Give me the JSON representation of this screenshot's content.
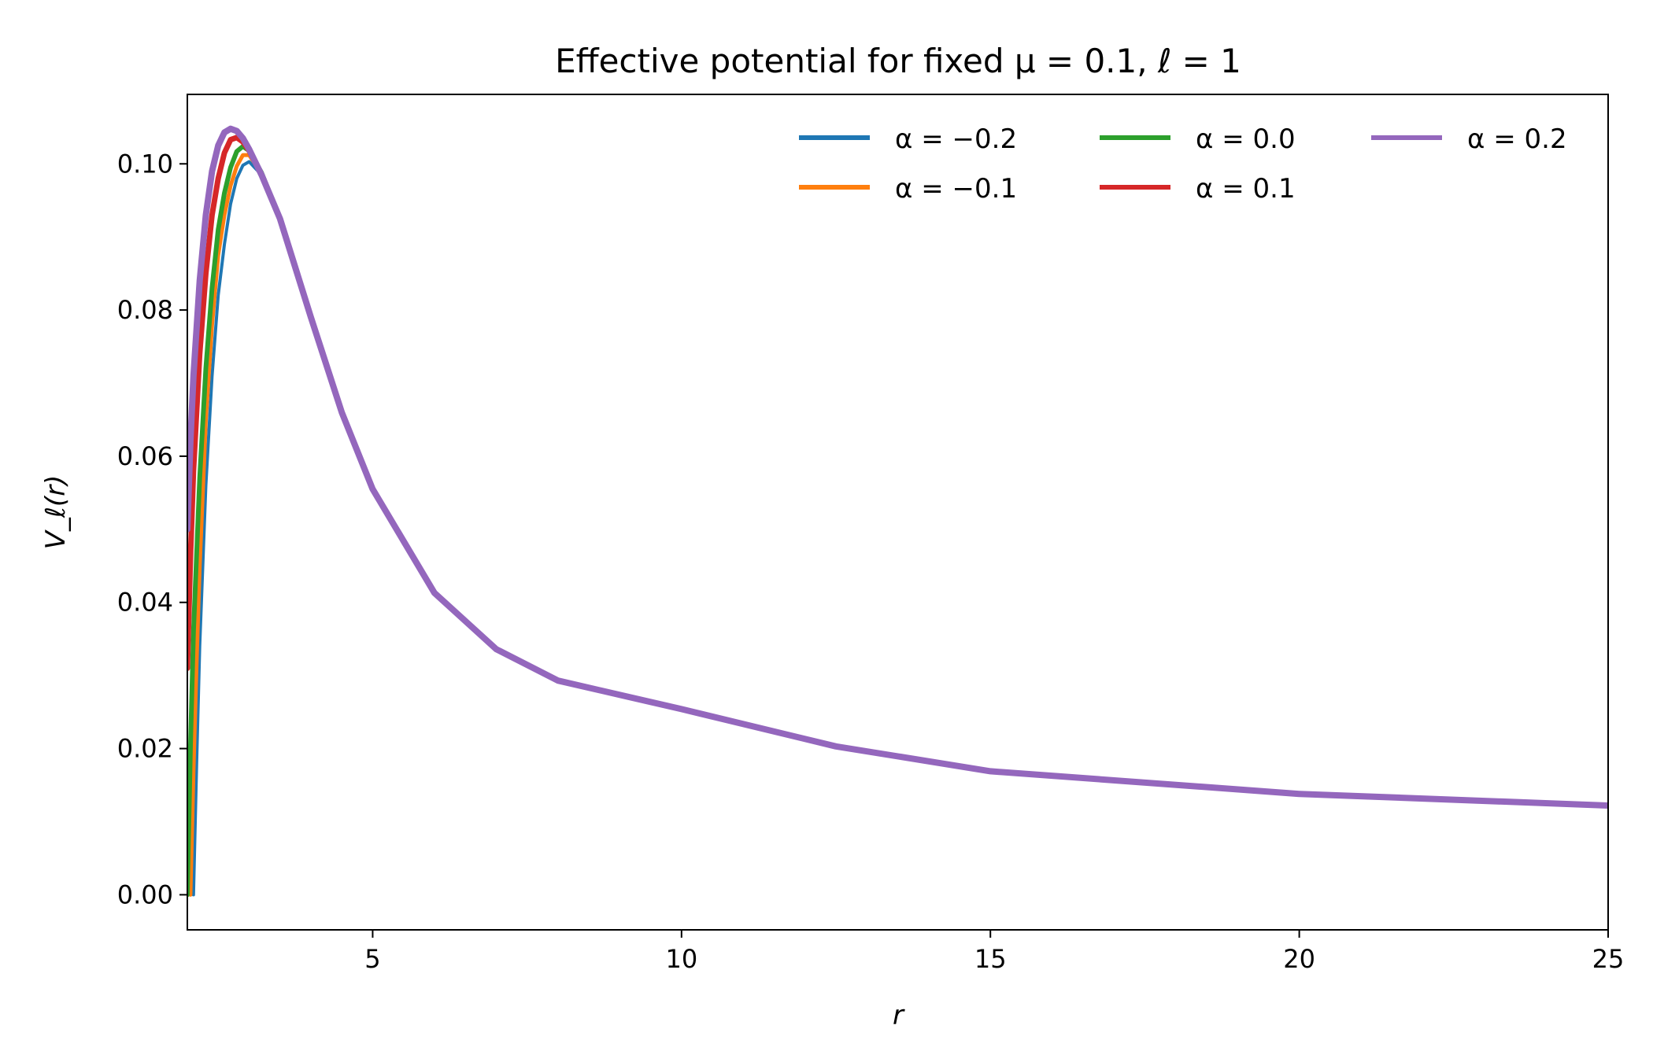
{
  "chart_data": {
    "type": "line",
    "title": "Effective potential for fixed μ = 0.1, ℓ = 1",
    "xlabel": "r",
    "ylabel": "V_ℓ(r)",
    "xlim": [
      2.0,
      25
    ],
    "ylim": [
      -0.0048,
      0.1095
    ],
    "x_ticks": [
      5,
      10,
      15,
      20,
      25
    ],
    "x_tick_labels": [
      "5",
      "10",
      "15",
      "20",
      "25"
    ],
    "y_ticks": [
      0.0,
      0.02,
      0.04,
      0.06,
      0.08,
      0.1
    ],
    "y_tick_labels": [
      "0.00",
      "0.02",
      "0.04",
      "0.06",
      "0.08",
      "0.10"
    ],
    "grid": false,
    "legend": {
      "placement": "top-right",
      "columns": 3
    },
    "series": [
      {
        "name": "α = −0.2",
        "color": "#1f77b4",
        "x": [
          2.1,
          2.15,
          2.2,
          2.3,
          2.4,
          2.5,
          2.6,
          2.7,
          2.8,
          2.9,
          3.0,
          3.2,
          3.5,
          4.0,
          4.5,
          5.0,
          6.0,
          7.0,
          8.0,
          10.0,
          12.5,
          15.0,
          20.0,
          25.0
        ],
        "y": [
          0.0,
          0.018,
          0.034,
          0.056,
          0.071,
          0.082,
          0.089,
          0.0945,
          0.098,
          0.0998,
          0.1003,
          0.0985,
          0.0925,
          0.079,
          0.066,
          0.0555,
          0.0413,
          0.0336,
          0.0293,
          0.0254,
          0.0203,
          0.0169,
          0.0138,
          0.0122
        ]
      },
      {
        "name": "α = −0.1",
        "color": "#ff7f0e",
        "x": [
          2.05,
          2.1,
          2.15,
          2.2,
          2.3,
          2.4,
          2.5,
          2.6,
          2.7,
          2.8,
          2.9,
          3.0,
          3.2,
          3.5,
          4.0,
          4.5,
          5.0,
          6.0,
          7.0,
          8.0,
          10.0,
          12.5,
          15.0,
          20.0,
          25.0
        ],
        "y": [
          0.0,
          0.017,
          0.032,
          0.045,
          0.065,
          0.078,
          0.0875,
          0.093,
          0.097,
          0.0997,
          0.1012,
          0.1012,
          0.0987,
          0.0925,
          0.079,
          0.066,
          0.0555,
          0.0413,
          0.0336,
          0.0293,
          0.0254,
          0.0203,
          0.0169,
          0.0138,
          0.0122
        ]
      },
      {
        "name": "α = 0.0",
        "color": "#2ca02c",
        "x": [
          2.0,
          2.05,
          2.1,
          2.2,
          2.3,
          2.4,
          2.5,
          2.6,
          2.7,
          2.8,
          2.9,
          3.0,
          3.2,
          3.5,
          4.0,
          4.5,
          5.0,
          6.0,
          7.0,
          8.0,
          10.0,
          12.5,
          15.0,
          20.0,
          25.0
        ],
        "y": [
          0.0,
          0.02,
          0.036,
          0.057,
          0.072,
          0.083,
          0.091,
          0.096,
          0.0995,
          0.1017,
          0.1024,
          0.1018,
          0.0988,
          0.0925,
          0.079,
          0.066,
          0.0555,
          0.0413,
          0.0336,
          0.0293,
          0.0254,
          0.0203,
          0.0169,
          0.0138,
          0.0122
        ]
      },
      {
        "name": "α = 0.1",
        "color": "#d62728",
        "x": [
          2.0,
          2.05,
          2.1,
          2.2,
          2.3,
          2.4,
          2.5,
          2.6,
          2.7,
          2.8,
          2.9,
          3.0,
          3.2,
          3.5,
          4.0,
          4.5,
          5.0,
          6.0,
          7.0,
          8.0,
          10.0,
          12.5,
          15.0,
          20.0,
          25.0
        ],
        "y": [
          0.031,
          0.046,
          0.058,
          0.074,
          0.085,
          0.093,
          0.098,
          0.1015,
          0.1033,
          0.1036,
          0.103,
          0.1018,
          0.0985,
          0.0925,
          0.079,
          0.066,
          0.0555,
          0.0413,
          0.0336,
          0.0293,
          0.0254,
          0.0203,
          0.0169,
          0.0138,
          0.0122
        ]
      },
      {
        "name": "α = 0.2",
        "color": "#9467bd",
        "x": [
          2.0,
          2.05,
          2.1,
          2.2,
          2.3,
          2.4,
          2.5,
          2.6,
          2.7,
          2.8,
          2.9,
          3.0,
          3.2,
          3.5,
          4.0,
          4.5,
          5.0,
          6.0,
          7.0,
          8.0,
          10.0,
          12.5,
          15.0,
          20.0,
          25.0
        ],
        "y": [
          0.05,
          0.062,
          0.071,
          0.084,
          0.093,
          0.099,
          0.1025,
          0.1043,
          0.1048,
          0.1045,
          0.1035,
          0.102,
          0.0985,
          0.0925,
          0.079,
          0.066,
          0.0555,
          0.0413,
          0.0336,
          0.0293,
          0.0254,
          0.0203,
          0.0169,
          0.0138,
          0.0122
        ]
      }
    ]
  }
}
